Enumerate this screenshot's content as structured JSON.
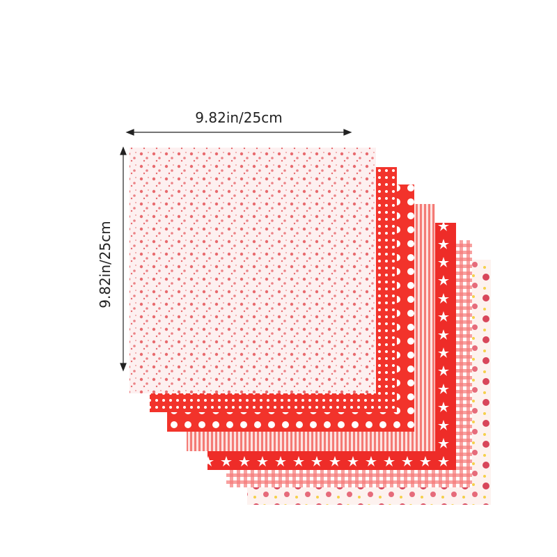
{
  "dimensions": {
    "width": {
      "label": "9.82in/25cm"
    },
    "height": {
      "label": "9.82in/25cm"
    }
  }
}
